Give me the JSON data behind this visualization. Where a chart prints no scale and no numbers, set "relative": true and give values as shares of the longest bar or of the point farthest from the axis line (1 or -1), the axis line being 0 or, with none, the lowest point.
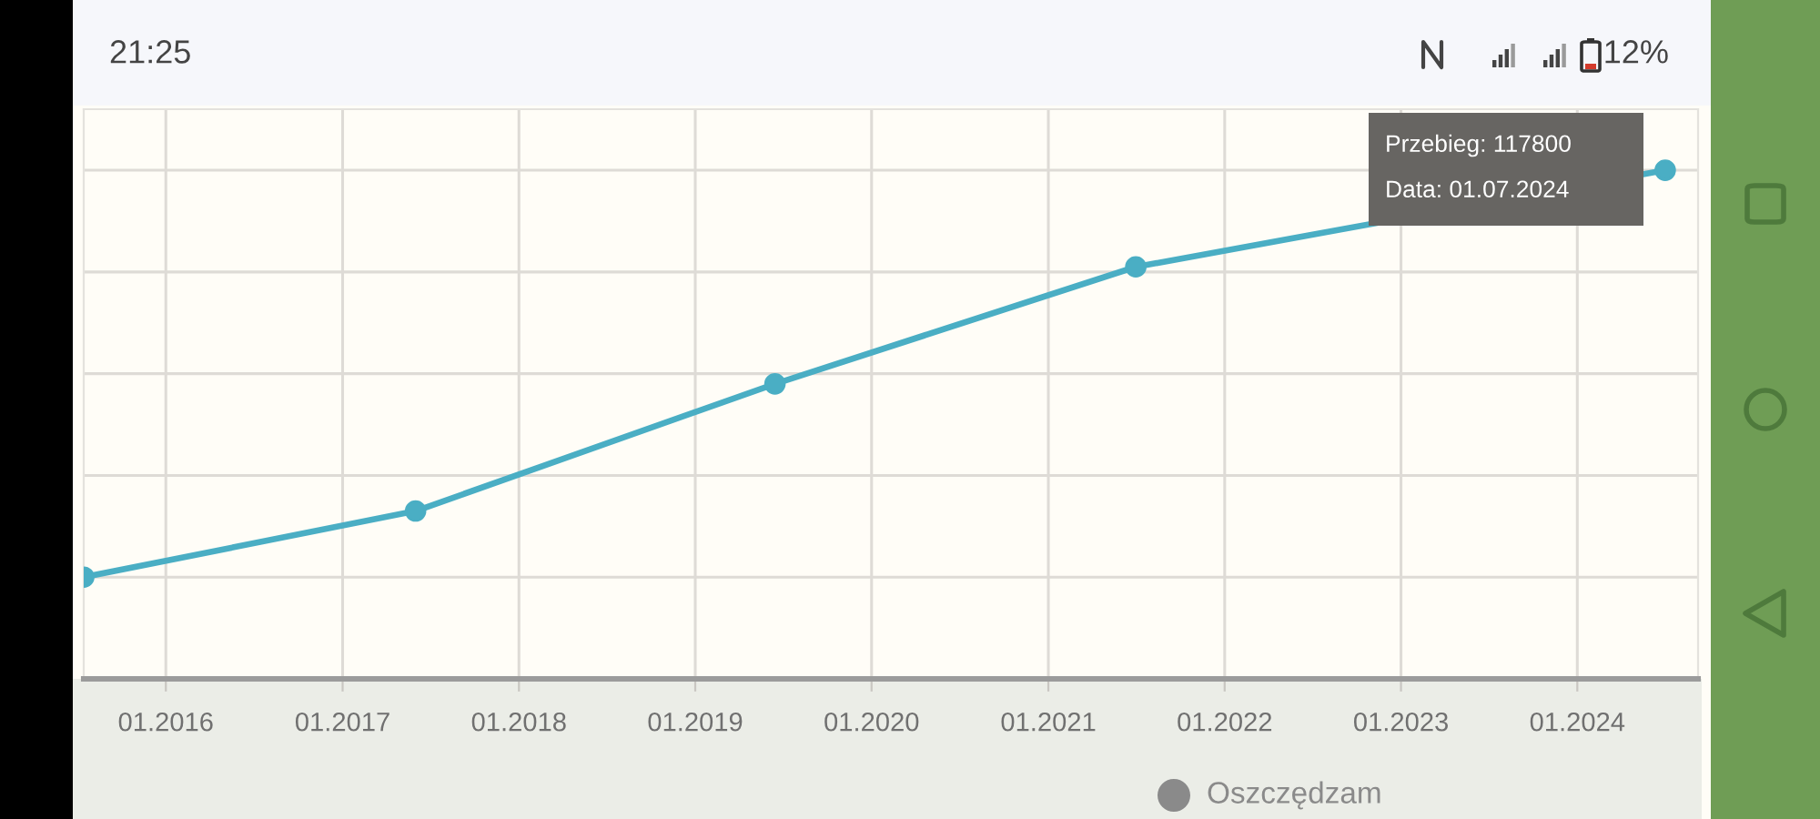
{
  "chart_data": {
    "type": "line",
    "relative": true,
    "annotations": [
      "21:25",
      "12%",
      "Przebieg: 117800",
      "Data: 01.07.2024",
      "Oszczędzam"
    ],
    "x": [
      "2015-07-15",
      "2017-06-01",
      "2019-06-15",
      "2021-07-01",
      "2024-07-01"
    ],
    "series": [
      {
        "color": "#4aaec4",
        "values": [
          0.2,
          0.33,
          0.58,
          0.81,
          1
        ]
      }
    ],
    "xlim": [
      "2015-07-15",
      "2024-09-07"
    ],
    "xticks": [
      {
        "value": "2016-01-01",
        "label": "01.2016"
      },
      {
        "value": "2017-01-01",
        "label": "01.2017"
      },
      {
        "value": "2018-01-01",
        "label": "01.2018"
      },
      {
        "value": "2019-01-01",
        "label": "01.2019"
      },
      {
        "value": "2020-01-01",
        "label": "01.2020"
      },
      {
        "value": "2021-01-01",
        "label": "01.2021"
      },
      {
        "value": "2022-01-01",
        "label": "01.2022"
      },
      {
        "value": "2023-01-01",
        "label": "01.2023"
      },
      {
        "value": "2024-01-01",
        "label": "01.2024"
      }
    ],
    "tick_labels": "x",
    "grid": true,
    "marker": "circle",
    "line_style": "solid"
  }
}
